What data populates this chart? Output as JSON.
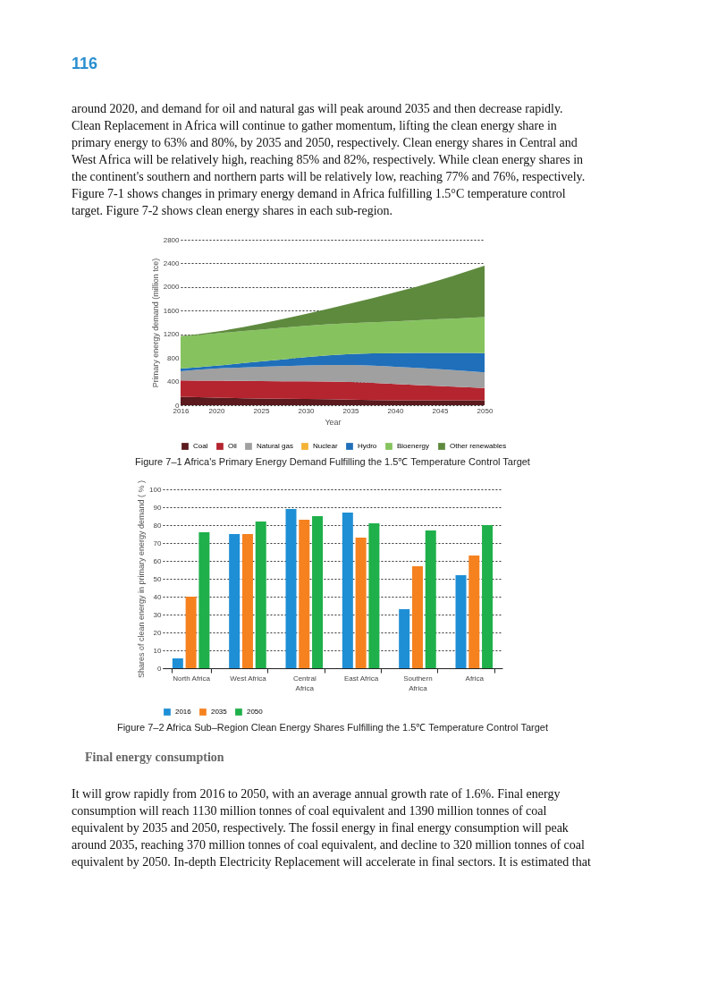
{
  "chart_data": [
    {
      "type": "area",
      "stacked": true,
      "title": "Figure 7–1    Africa's Primary Energy Demand Fulfilling the 1.5℃ Temperature Control Target",
      "xlabel": "Year",
      "ylabel": "Primary energy demand (million tce)",
      "annotations": [
        "116",
        "around 2020, and demand for oil and natural gas will peak around 2035 and then decrease rapidly.",
        "Clean Replacement in Africa will continue to gather momentum, lifting the clean energy share in",
        "primary energy to 63% and 80%, by 2035 and 2050, respectively. Clean energy shares in Central and",
        "West Africa will be relatively high, reaching 85% and 82%, respectively. While clean energy shares in",
        "the continent's southern and northern parts will be relatively low, reaching 77% and 76%, respectively.",
        "Figure 7-1 shows changes in primary energy demand in Africa fulfilling 1.5°C temperature control",
        "target. Figure 7-2 shows clean energy shares in each sub-region."
      ],
      "x": [
        2016,
        2020,
        2025,
        2030,
        2035,
        2040,
        2045,
        2050
      ],
      "series": [
        {
          "name": "Coal",
          "color": "#5a1a1e",
          "values": [
            145,
            130,
            115,
            105,
            95,
            85,
            85,
            85
          ]
        },
        {
          "name": "Oil",
          "color": "#b5252f",
          "values": [
            275,
            285,
            295,
            300,
            300,
            275,
            240,
            205
          ]
        },
        {
          "name": "Natural gas",
          "color": "#a0a0a0",
          "values": [
            155,
            205,
            240,
            270,
            285,
            290,
            285,
            265
          ]
        },
        {
          "name": "Nuclear",
          "color": "#f5b335",
          "values": [
            null,
            null,
            null,
            null,
            null,
            null,
            null,
            null
          ]
        },
        {
          "name": "Hydro",
          "color": "#1f6fba",
          "values": [
            45,
            50,
            90,
            140,
            185,
            230,
            275,
            325
          ]
        },
        {
          "name": "Bioenergy",
          "color": "#86c35e",
          "values": [
            540,
            545,
            540,
            530,
            525,
            540,
            570,
            610
          ]
        },
        {
          "name": "Other renewables",
          "color": "#5e8a3e",
          "values": [
            10,
            30,
            100,
            200,
            330,
            490,
            665,
            870
          ]
        }
      ],
      "xlim": [
        2016,
        2050
      ],
      "xticks": [
        2016,
        2020,
        2025,
        2030,
        2035,
        2040,
        2045,
        2050
      ],
      "ylim": [
        0,
        2800
      ],
      "yticks": [
        0,
        400,
        800,
        1200,
        1600,
        2000,
        2400,
        2800
      ],
      "grid": "y",
      "legend": "bottom"
    },
    {
      "type": "bar",
      "title": "Figure 7–2    Africa Sub–Region Clean Energy Shares Fulfilling the 1.5℃ Temperature Control Target",
      "ylabel": "Shares of clean energy in primary energy demand ( % )",
      "annotations": [
        "Final energy consumption",
        "It will grow rapidly from 2016 to 2050, with an average annual growth rate of 1.6%. Final energy",
        "consumption will reach 1130 million tonnes of coal equivalent and 1390 million tonnes of coal",
        "equivalent by 2035 and 2050, respectively. The fossil energy in final energy consumption will peak",
        "around 2035, reaching 370 million tonnes of coal equivalent, and decline to 320 million tonnes of coal",
        "equivalent by 2050. In-depth Electricity Replacement will accelerate in final sectors. It is estimated that"
      ],
      "categories": [
        "North Africa",
        "West Africa",
        "Central Africa",
        "East Africa",
        "Southern Africa",
        "Africa"
      ],
      "series": [
        {
          "name": "2016",
          "color": "#1e8fd5",
          "values": [
            5.5,
            75,
            89,
            87,
            33,
            52
          ]
        },
        {
          "name": "2035",
          "color": "#f5821f",
          "values": [
            40,
            75,
            83,
            73,
            57,
            63
          ]
        },
        {
          "name": "2050",
          "color": "#1fb04b",
          "values": [
            76,
            82,
            85,
            81,
            77,
            80
          ]
        }
      ],
      "ylim": [
        0,
        100
      ],
      "yticks": [
        0,
        10,
        20,
        30,
        40,
        50,
        60,
        70,
        80,
        90,
        100
      ],
      "grid": "y",
      "legend": "bottom"
    }
  ]
}
